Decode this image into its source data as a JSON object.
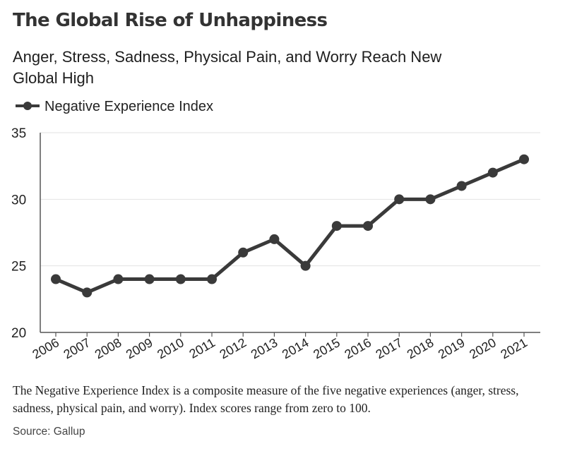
{
  "title": "The Global Rise of Unhappiness",
  "subtitle": "Anger, Stress, Sadness, Physical Pain, and Worry Reach New Global High",
  "footnote": "The Negative Experience Index is a composite measure of the five negative experiences (anger, stress, sadness, physical pain, and worry). Index scores range from zero to 100.",
  "source": "Source: Gallup",
  "colors": {
    "line": "#3a3a3a",
    "grid": "#e2e2e2",
    "axis": "#555555"
  },
  "chart_data": {
    "type": "line",
    "title": "The Global Rise of Unhappiness",
    "subtitle": "Anger, Stress, Sadness, Physical Pain, and Worry Reach New Global High",
    "xlabel": "",
    "ylabel": "",
    "ylim": [
      20,
      35
    ],
    "yticks": [
      20,
      25,
      30,
      35
    ],
    "grid": true,
    "legend_position": "top-left",
    "categories": [
      "2006",
      "2007",
      "2008",
      "2009",
      "2010",
      "2011",
      "2012",
      "2013",
      "2014",
      "2015",
      "2016",
      "2017",
      "2018",
      "2019",
      "2020",
      "2021"
    ],
    "series": [
      {
        "name": "Negative Experience Index",
        "values": [
          24,
          23,
          24,
          24,
          24,
          24,
          26,
          27,
          25,
          28,
          28,
          30,
          30,
          31,
          32,
          33
        ]
      }
    ]
  }
}
